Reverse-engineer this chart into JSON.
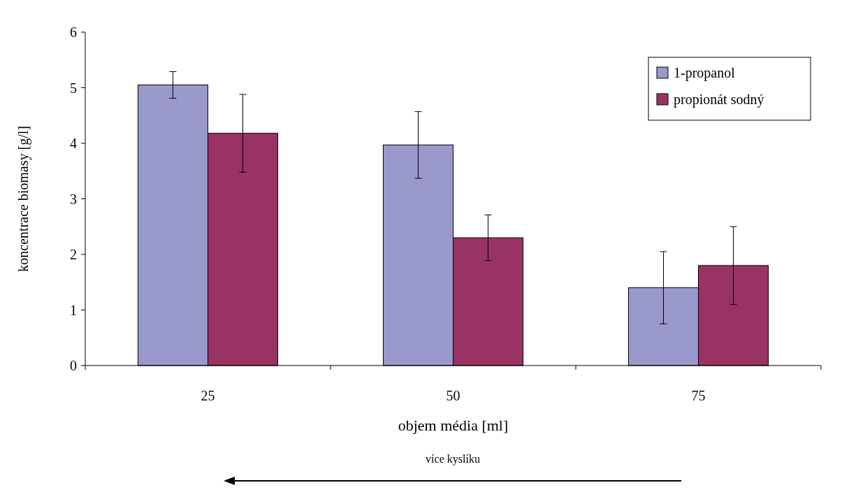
{
  "chart_data": {
    "type": "bar",
    "xlabel": "objem média [ml]",
    "ylabel": "koncentrace biomasy [g/l]",
    "categories": [
      "25",
      "50",
      "75"
    ],
    "series": [
      {
        "name": "1-propanol",
        "color": "#9999cc",
        "values": [
          5.05,
          3.97,
          1.4
        ],
        "errors": [
          0.24,
          0.6,
          0.65
        ]
      },
      {
        "name": "propionát sodný",
        "color": "#993366",
        "values": [
          4.18,
          2.3,
          1.8
        ],
        "errors": [
          0.7,
          0.41,
          0.7
        ]
      }
    ],
    "ylim": [
      0,
      6
    ],
    "yticks": [
      0,
      1,
      2,
      3,
      4,
      5,
      6
    ],
    "grid": false,
    "legend": "top right",
    "annotations": [
      "více kyslíku"
    ]
  }
}
